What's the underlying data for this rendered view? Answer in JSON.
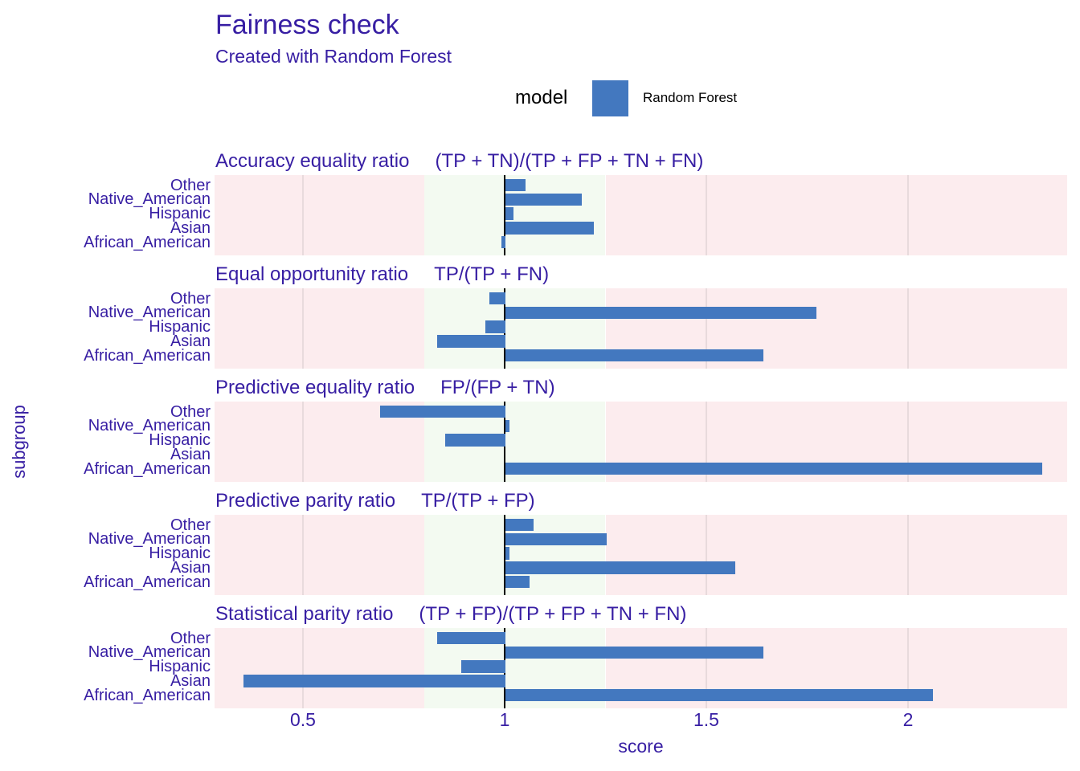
{
  "chart_data": {
    "type": "bar",
    "orientation": "horizontal",
    "title": "Fairness check",
    "subtitle": "Created with Random Forest",
    "legend": {
      "title": "model",
      "entries": [
        "Random Forest"
      ],
      "position": "top"
    },
    "xlabel": "score",
    "ylabel": "subgroup",
    "x_ticks": [
      0.5,
      1,
      1.5,
      2
    ],
    "xlim": [
      0.28,
      2.39
    ],
    "baseline": 1,
    "fair_zone": [
      0.8,
      1.25
    ],
    "grid": "major-vertical",
    "categories": [
      "Other",
      "Native_American",
      "Hispanic",
      "Asian",
      "African_American"
    ],
    "panels": [
      {
        "title": "Accuracy equality ratio",
        "formula": "(TP + TN)/(TP + FP + TN + FN)",
        "values": [
          1.05,
          1.19,
          1.02,
          1.22,
          0.99
        ]
      },
      {
        "title": "Equal opportunity ratio",
        "formula": "TP/(TP + FN)",
        "values": [
          0.96,
          1.77,
          0.95,
          0.83,
          1.64
        ]
      },
      {
        "title": "Predictive equality ratio",
        "formula": "FP/(FP + TN)",
        "values": [
          0.69,
          1.01,
          0.85,
          1.0,
          2.33
        ]
      },
      {
        "title": "Predictive parity ratio",
        "formula": "TP/(TP + FP)",
        "values": [
          1.07,
          1.25,
          1.01,
          1.57,
          1.06
        ]
      },
      {
        "title": "Statistical parity ratio",
        "formula": "(TP + FP)/(TP + FP + TN + FN)",
        "values": [
          0.83,
          1.64,
          0.89,
          0.35,
          2.06
        ]
      }
    ],
    "colors": {
      "bar": "#4378bf",
      "text": "#371ea3",
      "legend_text": "#000000",
      "fair_zone_fill": "#f3faf1",
      "unfair_zone_fill": "#fcecee",
      "gridline": "rgba(110,110,110,0.14)",
      "baseline_line": "#000000"
    }
  }
}
